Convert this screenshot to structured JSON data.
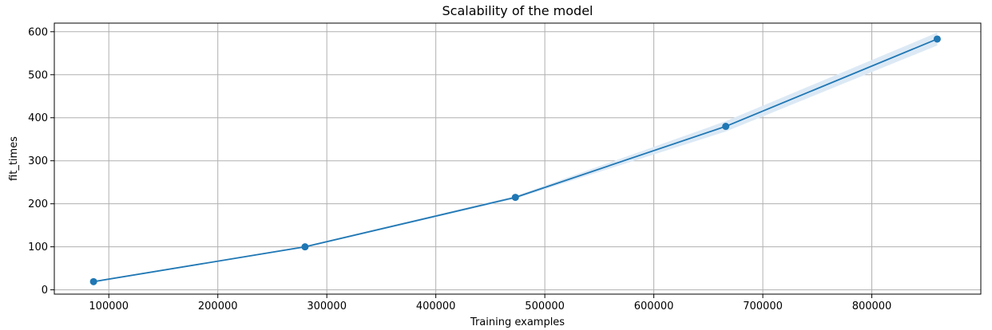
{
  "chart_data": {
    "type": "line",
    "title": "Scalability of the model",
    "xlabel": "Training examples",
    "ylabel": "fit_times",
    "xlim": [
      50000,
      900000
    ],
    "ylim": [
      -10,
      620
    ],
    "xticks": [
      100000,
      200000,
      300000,
      400000,
      500000,
      600000,
      700000,
      800000
    ],
    "xtick_labels": [
      "100000",
      "200000",
      "300000",
      "400000",
      "500000",
      "600000",
      "700000",
      "800000"
    ],
    "yticks": [
      0,
      100,
      200,
      300,
      400,
      500,
      600
    ],
    "ytick_labels": [
      "0",
      "100",
      "200",
      "300",
      "400",
      "500",
      "600"
    ],
    "grid": true,
    "series": [
      {
        "x": [
          86000,
          280000,
          473000,
          666000,
          860000
        ],
        "values": [
          19,
          100,
          215,
          380,
          583
        ],
        "band_lower": [
          18,
          98,
          212,
          368,
          568
        ],
        "band_upper": [
          20,
          102,
          218,
          392,
          598
        ],
        "color": "#1f77b4",
        "band_color": "#dce9f5",
        "marker": "circle"
      }
    ]
  }
}
